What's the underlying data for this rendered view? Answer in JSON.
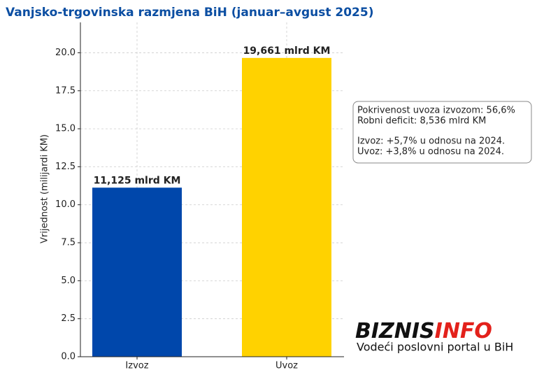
{
  "chart_data": {
    "type": "bar",
    "title": "Vanjsko-trgovinska razmjena BiH (januar–avgust 2025)",
    "y_label": "Vrijednost (milijardi KM)",
    "categories": [
      "Izvoz",
      "Uvoz"
    ],
    "values": [
      11.125,
      19.661
    ],
    "value_labels": [
      "11,125 mlrd KM",
      "19,661 mlrd KM"
    ],
    "colors": [
      "#0047ab",
      "#ffd200"
    ],
    "ylim": [
      0,
      22
    ],
    "yticks": [
      {
        "value": 0,
        "label": "0.0"
      },
      2.5,
      {
        "value": 5,
        "label": "5.0"
      },
      7.5,
      {
        "value": 10,
        "label": "10.0"
      },
      12.5,
      {
        "value": 15,
        "label": "15.0"
      },
      17.5,
      {
        "value": 20,
        "label": "20.0"
      }
    ],
    "grid": true,
    "annotation": [
      [
        "Pokrivenost uvoza izvozom: 56,6%",
        "Robni deficit: 8,536 mlrd KM"
      ],
      [
        "Izvoz: +5,7% u odnosu na 2024.",
        "Uvoz: +3,8% u odnosu na 2024."
      ]
    ]
  },
  "logo": {
    "part1": "BIZNIS",
    "part2": "INFO",
    "tagline": "Vodeći poslovni portal u BiH"
  }
}
